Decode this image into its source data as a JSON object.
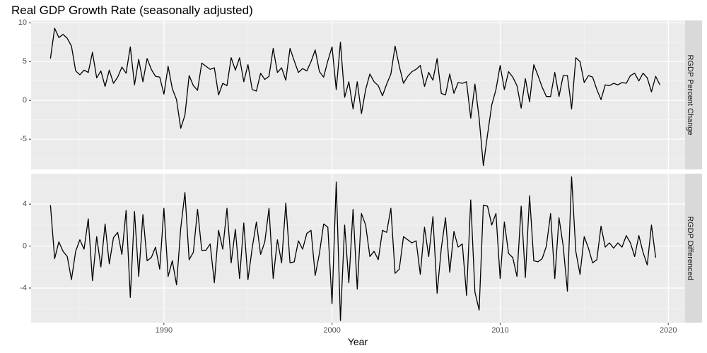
{
  "chart_data": {
    "type": "line",
    "title": "Real GDP Growth Rate (seasonally adjusted)",
    "xlabel": "Year",
    "x_start": 1983.25,
    "x_step": 0.25,
    "xlim": [
      1982.1,
      2021.0
    ],
    "x_ticks": [
      1990,
      2000,
      2010,
      2020
    ],
    "grid": true,
    "legend": "none",
    "line_color": "#000000",
    "panel_background": "#ebebeb",
    "strip_background": "#d9d9d9",
    "panels": [
      {
        "strip_label": "RGDP Percent Change",
        "ylim": [
          -8.9,
          10.3
        ],
        "y_ticks": [
          -5,
          0,
          5,
          10
        ],
        "y_tick_labels": [
          "-5",
          "0",
          "5",
          "10"
        ],
        "values": [
          5.4,
          9.3,
          8.1,
          8.5,
          8.0,
          7.0,
          3.8,
          3.3,
          3.9,
          3.6,
          6.2,
          2.9,
          3.8,
          1.8,
          3.9,
          2.2,
          3.0,
          4.3,
          3.5,
          6.9,
          2.0,
          5.3,
          2.4,
          5.4,
          4.0,
          3.1,
          3.0,
          0.8,
          4.4,
          1.5,
          0.1,
          -3.6,
          -1.9,
          3.2,
          1.9,
          1.3,
          4.8,
          4.4,
          4.0,
          4.2,
          0.7,
          2.2,
          1.9,
          5.5,
          3.9,
          5.5,
          2.4,
          4.6,
          1.4,
          1.2,
          3.5,
          2.7,
          3.1,
          6.7,
          3.6,
          4.2,
          2.6,
          6.7,
          5.1,
          3.6,
          4.1,
          3.8,
          5.0,
          6.5,
          3.7,
          3.0,
          5.1,
          6.9,
          1.4,
          7.5,
          0.4,
          2.4,
          -1.1,
          2.4,
          -1.7,
          1.4,
          3.4,
          2.4,
          1.9,
          0.6,
          2.1,
          3.4,
          7.0,
          4.4,
          2.2,
          3.1,
          3.7,
          4.0,
          4.5,
          1.8,
          3.6,
          2.6,
          5.4,
          0.9,
          0.7,
          3.4,
          0.9,
          2.3,
          2.2,
          2.4,
          -2.3,
          2.1,
          -2.3,
          -8.4,
          -4.4,
          -0.6,
          1.4,
          4.5,
          1.4,
          3.7,
          3.0,
          1.9,
          -1.0,
          2.8,
          -0.2,
          4.6,
          3.2,
          1.7,
          0.5,
          0.5,
          3.6,
          0.5,
          3.2,
          3.2,
          -1.1,
          5.5,
          5.0,
          2.3,
          3.2,
          3.0,
          1.4,
          0.1,
          2.0,
          1.9,
          2.2,
          2.0,
          2.3,
          2.2,
          3.2,
          3.5,
          2.5,
          3.5,
          2.9,
          1.1,
          3.1,
          2.0
        ]
      },
      {
        "strip_label": "RGDP Differenced",
        "ylim": [
          -7.3,
          6.9
        ],
        "y_ticks": [
          -4,
          0,
          4
        ],
        "y_tick_labels": [
          "-4",
          "0",
          "4"
        ],
        "values": [
          3.9,
          -1.2,
          0.4,
          -0.5,
          -1.0,
          -3.2,
          -0.5,
          0.6,
          -0.3,
          2.6,
          -3.3,
          0.9,
          -2.0,
          2.1,
          -1.7,
          0.8,
          1.3,
          -0.8,
          3.4,
          -4.9,
          3.3,
          -2.9,
          3.0,
          -1.4,
          -1.1,
          -0.1,
          -2.2,
          3.6,
          -2.9,
          -1.4,
          -3.7,
          1.7,
          5.1,
          -1.3,
          -0.6,
          3.5,
          -0.4,
          -0.4,
          0.2,
          -3.5,
          1.5,
          -0.3,
          3.6,
          -1.6,
          1.6,
          -3.1,
          2.2,
          -3.2,
          -0.2,
          2.3,
          -0.8,
          0.4,
          3.6,
          -3.1,
          0.6,
          -1.6,
          4.1,
          -1.6,
          -1.5,
          0.5,
          -0.3,
          1.2,
          1.5,
          -2.8,
          -0.7,
          2.1,
          1.8,
          -5.5,
          6.1,
          -7.1,
          2.0,
          -3.5,
          3.5,
          -4.1,
          3.1,
          2.0,
          -1.0,
          -0.5,
          -1.3,
          1.5,
          1.3,
          3.6,
          -2.6,
          -2.2,
          0.9,
          0.6,
          0.3,
          0.5,
          -2.7,
          1.8,
          -1.0,
          2.8,
          -4.5,
          -0.2,
          2.7,
          -2.5,
          1.4,
          -0.1,
          0.2,
          -4.7,
          4.4,
          -4.4,
          -6.1,
          3.9,
          3.8,
          2.0,
          3.1,
          -3.1,
          2.3,
          -0.7,
          -1.1,
          -2.9,
          3.8,
          -3.0,
          4.8,
          -1.4,
          -1.5,
          -1.2,
          0.0,
          3.1,
          -3.1,
          2.7,
          0.0,
          -4.3,
          6.6,
          -0.5,
          -2.7,
          0.9,
          -0.2,
          -1.6,
          -1.3,
          1.9,
          -0.1,
          0.3,
          -0.2,
          0.3,
          -0.1,
          1.0,
          0.3,
          -1.0,
          1.0,
          -0.6,
          -1.8,
          2.0,
          -1.1
        ]
      }
    ]
  }
}
